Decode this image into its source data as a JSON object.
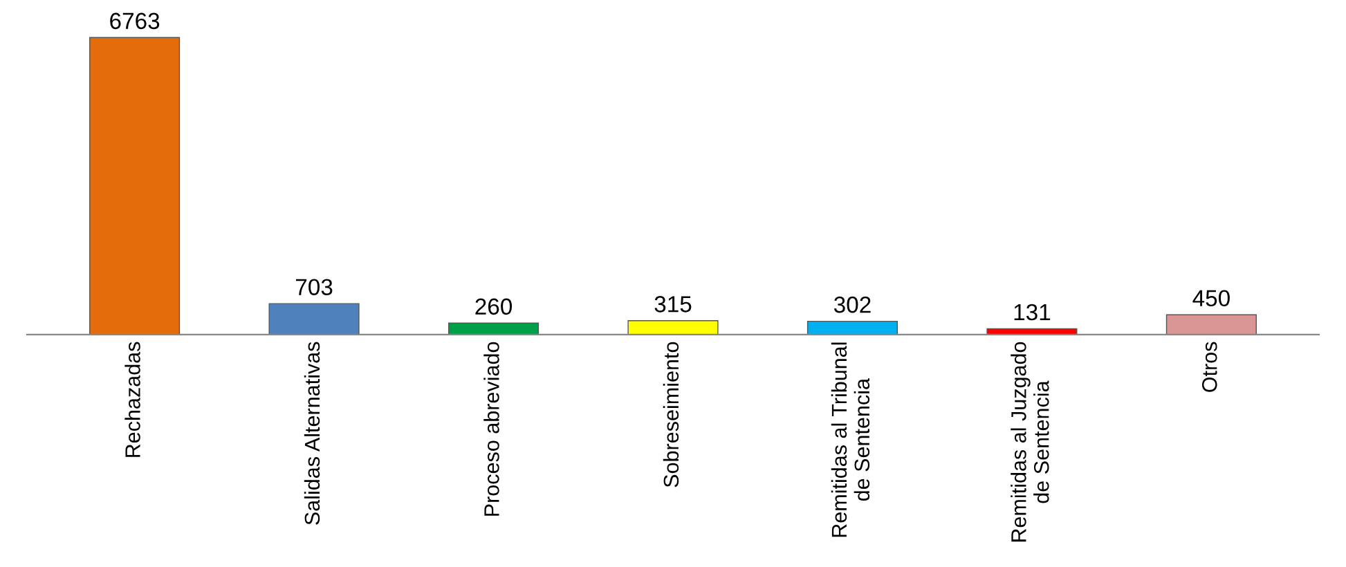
{
  "chart_data": {
    "type": "bar",
    "categories": [
      "Rechazadas",
      "Salidas Alternativas",
      "Proceso abreviado",
      "Sobreseimiento",
      "Remitidas al Tribunal\nde Sentencia",
      "Remitidas al Juzgado\nde Sentencia",
      "Otros"
    ],
    "values": [
      6763,
      703,
      260,
      315,
      302,
      131,
      450
    ],
    "colors": [
      "#e46c0a",
      "#4f81bd",
      "#00a04a",
      "#ffff00",
      "#00b0f0",
      "#ff0000",
      "#d99694"
    ],
    "data_labels": true
  }
}
